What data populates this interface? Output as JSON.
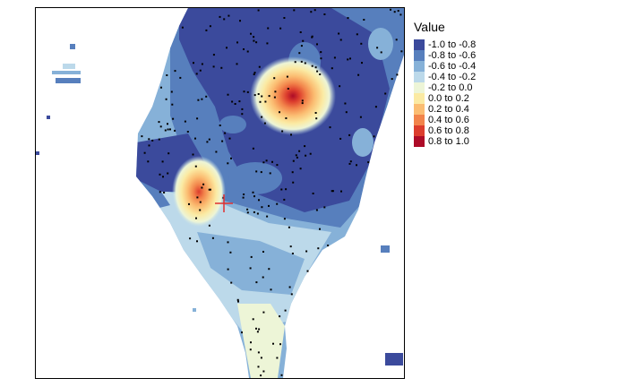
{
  "legend": {
    "title": "Value",
    "items": [
      {
        "label": "-1.0 to -0.8",
        "color": "#3b4a9c"
      },
      {
        "label": "-0.8 to -0.6",
        "color": "#577fbd"
      },
      {
        "label": "-0.6 to -0.4",
        "color": "#86b1d8"
      },
      {
        "label": "-0.4 to -0.2",
        "color": "#bcd9ea"
      },
      {
        "label": "-0.2 to 0.0",
        "color": "#edf5d7"
      },
      {
        "label": "0.0 to 0.2",
        "color": "#fbeaa3"
      },
      {
        "label": "0.2 to 0.4",
        "color": "#fbbd72"
      },
      {
        "label": "0.4 to 0.6",
        "color": "#f2844b"
      },
      {
        "label": "0.6 to 0.8",
        "color": "#dc3d2d"
      },
      {
        "label": "0.8 to 1.0",
        "color": "#ad0b27"
      }
    ]
  },
  "map": {
    "marker_color": "#e03030",
    "point_color": "#000000"
  }
}
